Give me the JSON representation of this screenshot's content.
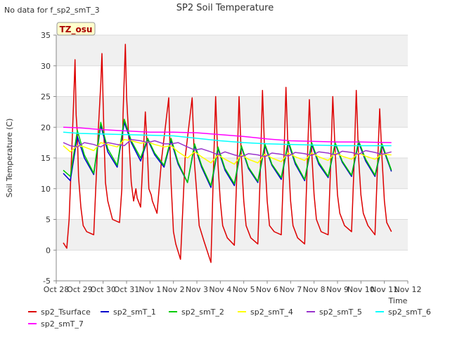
{
  "no_data_note": "No data for f_sp2_smT_3",
  "chart_data": {
    "type": "line",
    "title": "SP2 Soil Temperature",
    "xlabel": "Time",
    "ylabel": "Soil Temperature (C)",
    "tag_label": "TZ_osu",
    "xlim": [
      0,
      15
    ],
    "ylim": [
      -5,
      35
    ],
    "x_ticks": [
      0,
      1,
      2,
      3,
      4,
      5,
      6,
      7,
      8,
      9,
      10,
      11,
      12,
      13,
      14,
      15
    ],
    "x_tick_labels": [
      "Oct 28",
      "Oct 29",
      "Oct 30",
      "Oct 31",
      "Nov 1",
      "Nov 2",
      "Nov 3",
      "Nov 4",
      "Nov 5",
      "Nov 6",
      "Nov 7",
      "Nov 8",
      "Nov 9",
      "Nov 10",
      "Nov 11",
      "Nov 12"
    ],
    "y_ticks": [
      -5,
      0,
      5,
      10,
      15,
      20,
      25,
      30,
      35
    ],
    "series": [
      {
        "name": "sp2_Tsurface",
        "color": "#dd0000",
        "x": [
          0.3,
          0.45,
          0.55,
          0.65,
          0.75,
          0.8,
          0.85,
          0.9,
          0.95,
          1.05,
          1.15,
          1.3,
          1.6,
          1.8,
          1.9,
          1.95,
          2.0,
          2.05,
          2.1,
          2.2,
          2.4,
          2.7,
          2.8,
          2.85,
          2.9,
          2.95,
          3.0,
          3.1,
          3.2,
          3.3,
          3.35,
          3.4,
          3.45,
          3.5,
          3.6,
          3.8,
          3.9,
          3.95,
          4.0,
          4.05,
          4.1,
          4.2,
          4.3,
          4.5,
          4.8,
          4.85,
          4.9,
          4.95,
          5.0,
          5.1,
          5.3,
          5.5,
          5.8,
          5.9,
          6.0,
          6.1,
          6.3,
          6.6,
          6.7,
          6.8,
          6.9,
          7.0,
          7.1,
          7.3,
          7.6,
          7.7,
          7.8,
          7.9,
          8.0,
          8.1,
          8.3,
          8.6,
          8.7,
          8.8,
          8.9,
          9.0,
          9.1,
          9.3,
          9.6,
          9.7,
          9.8,
          9.9,
          10.0,
          10.1,
          10.3,
          10.6,
          10.7,
          10.8,
          10.9,
          11.0,
          11.1,
          11.3,
          11.6,
          11.7,
          11.8,
          11.9,
          12.0,
          12.1,
          12.3,
          12.6,
          12.7,
          12.8,
          12.9,
          13.0,
          13.1,
          13.3,
          13.6,
          13.7,
          13.8,
          13.9,
          14.0,
          14.1,
          14.3
        ],
        "values": [
          1.2,
          0.3,
          5,
          15,
          25,
          31,
          22,
          19,
          12,
          7,
          4,
          3,
          2.5,
          20,
          27,
          32,
          24,
          17,
          11,
          8,
          5,
          4.5,
          10,
          22,
          28,
          33.5,
          25,
          18,
          11,
          8,
          9,
          10,
          8.5,
          8,
          7,
          22.5,
          15,
          10,
          9.5,
          9,
          8,
          7,
          6,
          15,
          24.8,
          17,
          11,
          7,
          3,
          1,
          -1.5,
          15,
          24.8,
          14,
          9,
          4,
          1.5,
          -2,
          12,
          25,
          14,
          8,
          4,
          2,
          0.8,
          12,
          25,
          15,
          8,
          4,
          2,
          1,
          12,
          26,
          15,
          8,
          4,
          3,
          2.5,
          13,
          26.5,
          15,
          8,
          4,
          2,
          1,
          13,
          24.5,
          16,
          9,
          5,
          3,
          2.5,
          13,
          25,
          16,
          9,
          6,
          4,
          3,
          13,
          26,
          15,
          9,
          6,
          4,
          2.5,
          13,
          23,
          15,
          8,
          4.5,
          3
        ]
      },
      {
        "name": "sp2_smT_1",
        "color": "#0000cc",
        "x": [
          0.3,
          0.6,
          0.9,
          1.2,
          1.6,
          1.9,
          2.2,
          2.6,
          2.9,
          3.2,
          3.6,
          3.9,
          4.2,
          4.6,
          4.9,
          5.2,
          5.6,
          5.9,
          6.2,
          6.6,
          6.9,
          7.2,
          7.6,
          7.9,
          8.2,
          8.6,
          8.9,
          9.2,
          9.6,
          9.9,
          10.2,
          10.6,
          10.9,
          11.2,
          11.6,
          11.9,
          12.2,
          12.6,
          12.9,
          13.2,
          13.6,
          13.9,
          14.3
        ],
        "values": [
          12.5,
          11.3,
          18.5,
          15,
          12.3,
          20.3,
          16,
          13.5,
          20.8,
          17.5,
          14.5,
          18,
          15.5,
          13.5,
          17.8,
          14,
          11,
          17,
          13.5,
          10.2,
          16.5,
          13,
          10.5,
          16.8,
          13.3,
          11,
          17,
          13.8,
          11.5,
          17.5,
          14,
          11.3,
          17.2,
          14,
          11.8,
          17.3,
          14.3,
          12,
          17.5,
          14.5,
          12,
          17,
          12.8
        ]
      },
      {
        "name": "sp2_smT_2",
        "color": "#00cc00",
        "x": [
          0.3,
          0.6,
          0.9,
          1.2,
          1.6,
          1.9,
          2.2,
          2.6,
          2.9,
          3.2,
          3.6,
          3.9,
          4.2,
          4.6,
          4.9,
          5.2,
          5.6,
          5.9,
          6.2,
          6.6,
          6.9,
          7.2,
          7.6,
          7.9,
          8.2,
          8.6,
          8.9,
          9.2,
          9.6,
          9.9,
          10.2,
          10.6,
          10.9,
          11.2,
          11.6,
          11.9,
          12.2,
          12.6,
          12.9,
          13.2,
          13.6,
          13.9,
          14.3
        ],
        "values": [
          13,
          12,
          19.5,
          15.5,
          12.5,
          20.8,
          16.5,
          13.8,
          21.3,
          17.8,
          15,
          18.2,
          15.8,
          13.8,
          18.2,
          14.3,
          11,
          17.3,
          13.8,
          10.5,
          16.8,
          13.3,
          10.8,
          17,
          13.5,
          11.2,
          17.3,
          14,
          11.8,
          17.8,
          14.3,
          11.5,
          17.5,
          14.3,
          12,
          17.5,
          14.5,
          12.2,
          17.8,
          14.8,
          12.2,
          17.3,
          13
        ]
      },
      {
        "name": "sp2_smT_4",
        "color": "#ffff00",
        "x": [
          0.3,
          0.6,
          0.9,
          1.2,
          1.6,
          1.9,
          2.2,
          2.6,
          2.9,
          3.2,
          3.6,
          3.9,
          4.2,
          4.6,
          4.9,
          5.2,
          5.6,
          5.9,
          6.2,
          6.6,
          6.9,
          7.2,
          7.6,
          7.9,
          8.2,
          8.6,
          8.9,
          9.2,
          9.6,
          9.9,
          10.2,
          10.6,
          10.9,
          11.2,
          11.6,
          11.9,
          12.2,
          12.6,
          12.9,
          13.2,
          13.6,
          13.9,
          14.3
        ],
        "values": [
          17,
          16,
          17,
          16.8,
          16.2,
          17.5,
          17.2,
          16.8,
          18,
          17.8,
          17.4,
          17.6,
          17.2,
          16.8,
          17,
          16,
          15,
          16,
          15.2,
          14.2,
          15.5,
          14.8,
          14,
          15.5,
          14.8,
          14.2,
          15.6,
          15,
          14.4,
          15.8,
          15.2,
          14.6,
          15.8,
          15.2,
          14.6,
          15.8,
          15.3,
          14.8,
          15.8,
          15.3,
          14.8,
          15.6,
          15.5
        ]
      },
      {
        "name": "sp2_smT_5",
        "color": "#9933cc",
        "x": [
          0.3,
          0.6,
          0.9,
          1.2,
          1.6,
          1.9,
          2.2,
          2.6,
          2.9,
          3.2,
          3.6,
          3.9,
          4.2,
          4.6,
          4.9,
          5.2,
          5.6,
          5.9,
          6.2,
          6.6,
          6.9,
          7.2,
          7.6,
          7.9,
          8.2,
          8.6,
          8.9,
          9.2,
          9.6,
          9.9,
          10.2,
          10.6,
          10.9,
          11.2,
          11.6,
          11.9,
          12.2,
          12.6,
          12.9,
          13.2,
          13.6,
          13.9,
          14.3
        ],
        "values": [
          17.5,
          17,
          16.8,
          17.5,
          17.2,
          16.8,
          17.5,
          17.2,
          17,
          18,
          17.8,
          17.5,
          17.8,
          17.3,
          17.3,
          17.5,
          16.8,
          16.3,
          16.5,
          16,
          15.5,
          16,
          15.5,
          15.2,
          15.7,
          15.5,
          15.2,
          15.8,
          15.6,
          15.3,
          15.9,
          15.7,
          15.4,
          16,
          15.8,
          15.5,
          16.1,
          15.9,
          15.6,
          16.2,
          15.9,
          15.6,
          16
        ]
      },
      {
        "name": "sp2_smT_6",
        "color": "#00ffff",
        "x": [
          0.3,
          1,
          2,
          3,
          4,
          5,
          6,
          7,
          8,
          9,
          10,
          11,
          12,
          13,
          14.3
        ],
        "values": [
          19.2,
          19,
          18.9,
          18.8,
          18.7,
          18.6,
          18.2,
          17.8,
          17.5,
          17.3,
          17.2,
          17.1,
          17,
          17,
          17
        ]
      },
      {
        "name": "sp2_smT_7",
        "color": "#ff00ff",
        "x": [
          0.3,
          1,
          2,
          3,
          4,
          5,
          6,
          7,
          8,
          9,
          10,
          11,
          12,
          13,
          14.3
        ],
        "values": [
          20,
          19.9,
          19.6,
          19.4,
          19.2,
          19.2,
          19.1,
          18.8,
          18.5,
          18.1,
          17.8,
          17.7,
          17.6,
          17.6,
          17.5
        ]
      }
    ]
  }
}
